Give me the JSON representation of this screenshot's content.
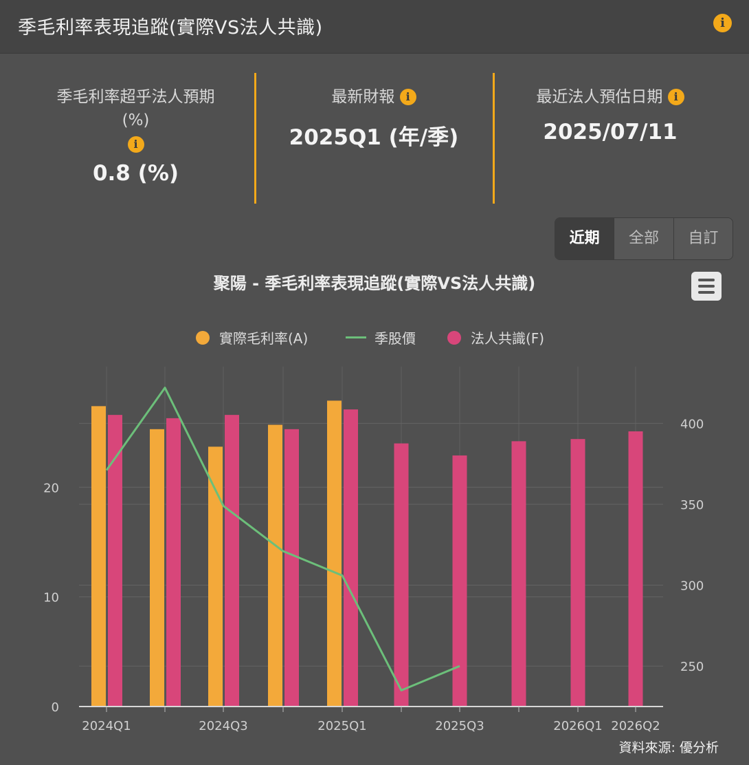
{
  "header": {
    "title": "季毛利率表現追蹤(實際VS法人共識)"
  },
  "stats": [
    {
      "label": "季毛利率超乎法人預期",
      "sub": "(%)",
      "value": "0.8 (%)"
    },
    {
      "label": "最新財報",
      "value": "2025Q1 (年/季)"
    },
    {
      "label": "最近法人預估日期",
      "value": "2025/07/11"
    }
  ],
  "range_buttons": [
    "近期",
    "全部",
    "自訂"
  ],
  "range_active": 0,
  "colors": {
    "actual": "#f3a93a",
    "price": "#6cbf7a",
    "consensus": "#d8467a",
    "accent": "#f3a91a"
  },
  "chart_data": {
    "type": "bar",
    "title": "聚陽 - 季毛利率表現追蹤(實際VS法人共識)",
    "categories": [
      "2024Q1",
      "2024Q2",
      "2024Q3",
      "2024Q4",
      "2025Q1",
      "2025Q2",
      "2025Q3",
      "2025Q4",
      "2026Q1",
      "2026Q2"
    ],
    "x_tick_labels": [
      "2024Q1",
      "",
      "2024Q3",
      "",
      "2025Q1",
      "",
      "2025Q3",
      "",
      "2026Q1",
      "2026Q2"
    ],
    "series": [
      {
        "name": "實際毛利率(A)",
        "type": "bar",
        "axis": "left",
        "values": [
          27.4,
          25.3,
          23.7,
          25.7,
          27.9,
          null,
          null,
          null,
          null,
          null
        ]
      },
      {
        "name": "季股價",
        "type": "line",
        "axis": "right",
        "values": [
          371,
          422,
          349,
          321,
          306,
          235,
          250,
          null,
          null,
          null
        ]
      },
      {
        "name": "法人共識(F)",
        "type": "bar",
        "axis": "left",
        "values": [
          26.6,
          26.3,
          26.6,
          25.3,
          27.1,
          24.0,
          22.9,
          24.2,
          24.4,
          25.1
        ]
      }
    ],
    "y_left": {
      "ticks": [
        0,
        10,
        20
      ],
      "range": [
        0,
        31
      ]
    },
    "y_right": {
      "ticks": [
        250,
        300,
        350,
        400
      ],
      "range": [
        225,
        435
      ]
    },
    "legend_position": "top-center",
    "grid": true
  },
  "source": "資料來源: 優分析"
}
